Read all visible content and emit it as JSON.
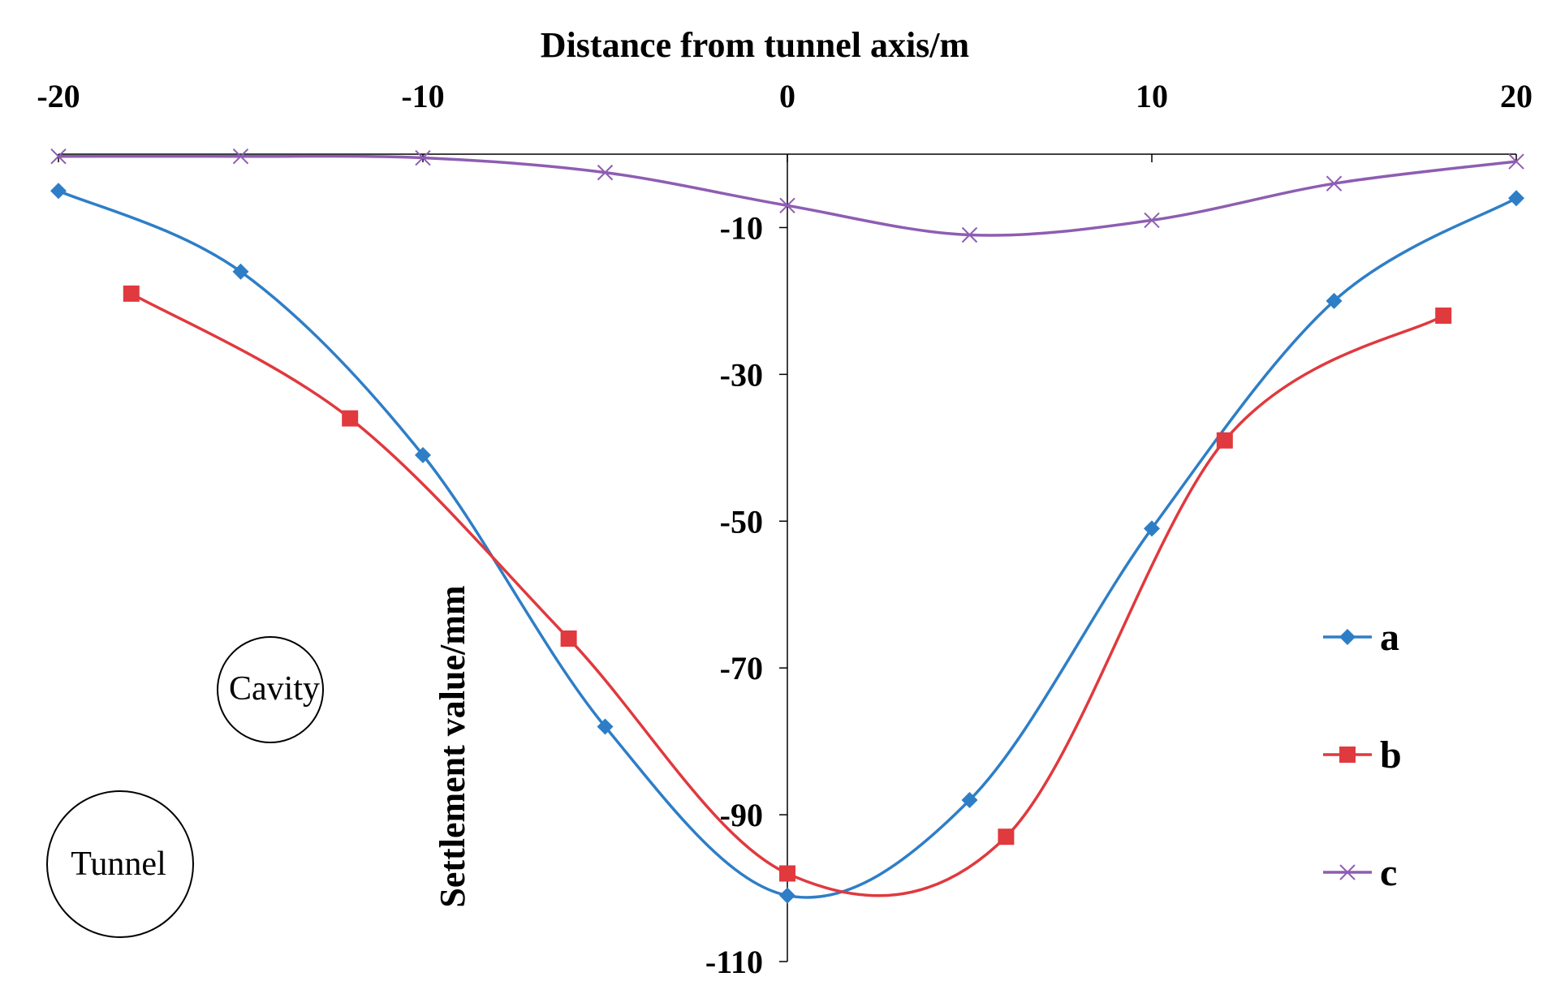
{
  "chart_data": {
    "type": "line",
    "title": "",
    "xlabel": "Distance from tunnel axis/m",
    "ylabel": "Settlement value/mm",
    "xlim": [
      -20,
      20
    ],
    "ylim": [
      -110,
      0
    ],
    "x_ticks": [
      "-20",
      "-10",
      "0",
      "10",
      "20"
    ],
    "x_tick_values": [
      -20,
      -10,
      0,
      10,
      20
    ],
    "y_ticks": [
      "-10",
      "-30",
      "-50",
      "-70",
      "-90",
      "-110"
    ],
    "y_tick_values": [
      -10,
      -30,
      -50,
      -70,
      -90,
      -110
    ],
    "x_axis_position": "top",
    "legend_position": "right",
    "series": [
      {
        "name": "a",
        "color": "#2e7ec7",
        "marker": "diamond",
        "points": [
          [
            -20,
            -5
          ],
          [
            -15,
            -16
          ],
          [
            -10,
            -41
          ],
          [
            -5,
            -78
          ],
          [
            0,
            -101
          ],
          [
            5,
            -88
          ],
          [
            10,
            -51
          ],
          [
            15,
            -20
          ],
          [
            20,
            -6
          ]
        ]
      },
      {
        "name": "b",
        "color": "#e0393e",
        "marker": "square",
        "points": [
          [
            -18,
            -19
          ],
          [
            -12,
            -36
          ],
          [
            -6,
            -66
          ],
          [
            0,
            -98
          ],
          [
            6,
            -93
          ],
          [
            12,
            -39
          ],
          [
            18,
            -22
          ]
        ]
      },
      {
        "name": "c",
        "color": "#8e5db2",
        "marker": "x",
        "points": [
          [
            -20,
            -0.3
          ],
          [
            -15,
            -0.3
          ],
          [
            -10,
            -0.5
          ],
          [
            -5,
            -2.5
          ],
          [
            0,
            -7
          ],
          [
            5,
            -11
          ],
          [
            10,
            -9
          ],
          [
            15,
            -4
          ],
          [
            20,
            -1
          ]
        ]
      }
    ],
    "annotations": [
      "Cavity",
      "Tunnel"
    ]
  }
}
